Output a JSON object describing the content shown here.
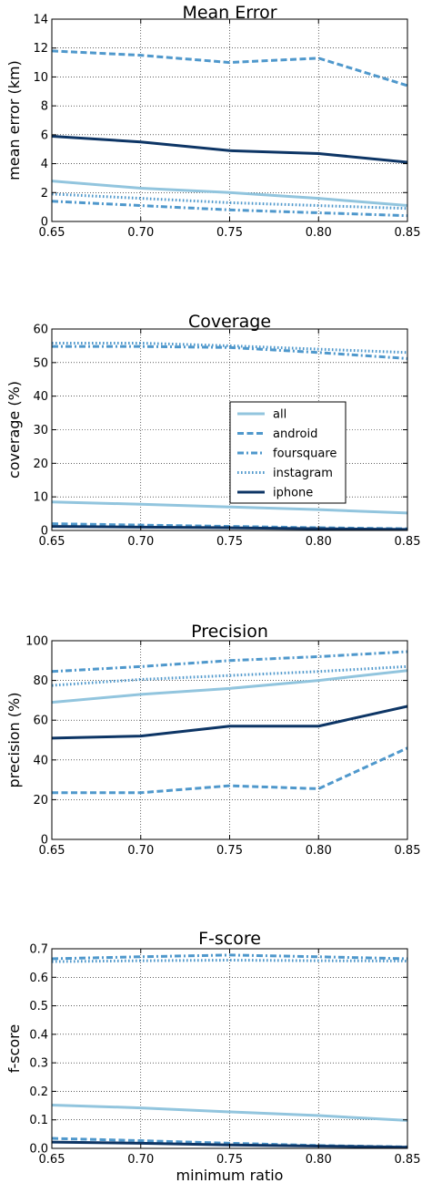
{
  "chart_data": [
    {
      "type": "line",
      "title": "Mean Error",
      "xlabel": "",
      "ylabel": "mean error (km)",
      "x": [
        0.65,
        0.7,
        0.75,
        0.8,
        0.85
      ],
      "x_ticks": [
        "0.65",
        "0.70",
        "0.75",
        "0.80",
        "0.85"
      ],
      "xlim": [
        0.65,
        0.85
      ],
      "ylim": [
        0,
        14
      ],
      "y_ticks": [
        "0",
        "2",
        "4",
        "6",
        "8",
        "10",
        "12",
        "14"
      ],
      "y_tick_values": [
        0,
        2,
        4,
        6,
        8,
        10,
        12,
        14
      ],
      "grid": true,
      "legend": null,
      "series": [
        {
          "name": "all",
          "values": [
            2.8,
            2.3,
            2.0,
            1.6,
            1.1
          ]
        },
        {
          "name": "android",
          "values": [
            11.8,
            11.5,
            11.0,
            11.3,
            9.4
          ]
        },
        {
          "name": "foursquare",
          "values": [
            1.4,
            1.1,
            0.8,
            0.6,
            0.4
          ]
        },
        {
          "name": "instagram",
          "values": [
            1.9,
            1.6,
            1.3,
            1.1,
            0.9
          ]
        },
        {
          "name": "iphone",
          "values": [
            5.9,
            5.5,
            4.9,
            4.7,
            4.1
          ]
        }
      ]
    },
    {
      "type": "line",
      "title": "Coverage",
      "xlabel": "",
      "ylabel": "coverage (%)",
      "x": [
        0.65,
        0.7,
        0.75,
        0.8,
        0.85
      ],
      "x_ticks": [
        "0.65",
        "0.70",
        "0.75",
        "0.80",
        "0.85"
      ],
      "xlim": [
        0.65,
        0.85
      ],
      "ylim": [
        0,
        60
      ],
      "y_ticks": [
        "0",
        "10",
        "20",
        "30",
        "40",
        "50",
        "60"
      ],
      "y_tick_values": [
        0,
        10,
        20,
        30,
        40,
        50,
        60
      ],
      "grid": true,
      "legend": "center-right",
      "series": [
        {
          "name": "all",
          "values": [
            8.5,
            7.8,
            7.0,
            6.2,
            5.2
          ]
        },
        {
          "name": "android",
          "values": [
            2.0,
            1.6,
            1.2,
            0.8,
            0.5
          ]
        },
        {
          "name": "foursquare",
          "values": [
            54.8,
            54.8,
            54.5,
            53.0,
            51.2
          ]
        },
        {
          "name": "instagram",
          "values": [
            55.8,
            55.8,
            55.0,
            54.0,
            53.0
          ]
        },
        {
          "name": "iphone",
          "values": [
            1.2,
            1.0,
            0.8,
            0.5,
            0.3
          ]
        }
      ]
    },
    {
      "type": "line",
      "title": "Precision",
      "xlabel": "",
      "ylabel": "precision (%)",
      "x": [
        0.65,
        0.7,
        0.75,
        0.8,
        0.85
      ],
      "x_ticks": [
        "0.65",
        "0.70",
        "0.75",
        "0.80",
        "0.85"
      ],
      "xlim": [
        0.65,
        0.85
      ],
      "ylim": [
        0,
        100
      ],
      "y_ticks": [
        "0",
        "20",
        "40",
        "60",
        "80",
        "100"
      ],
      "y_tick_values": [
        0,
        20,
        40,
        60,
        80,
        100
      ],
      "grid": true,
      "legend": null,
      "series": [
        {
          "name": "all",
          "values": [
            69,
            73,
            76,
            80,
            85
          ]
        },
        {
          "name": "android",
          "values": [
            23.5,
            23.5,
            27,
            25.5,
            46
          ]
        },
        {
          "name": "foursquare",
          "values": [
            84.5,
            87,
            90,
            92,
            94.5
          ]
        },
        {
          "name": "instagram",
          "values": [
            77.5,
            80.5,
            82.5,
            84.5,
            87
          ]
        },
        {
          "name": "iphone",
          "values": [
            51,
            52,
            57,
            57,
            67
          ]
        }
      ]
    },
    {
      "type": "line",
      "title": "F-score",
      "xlabel": "minimum ratio",
      "ylabel": "f-score",
      "x": [
        0.65,
        0.7,
        0.75,
        0.8,
        0.85
      ],
      "x_ticks": [
        "0.65",
        "0.70",
        "0.75",
        "0.80",
        "0.85"
      ],
      "xlim": [
        0.65,
        0.85
      ],
      "ylim": [
        0,
        0.7
      ],
      "y_ticks": [
        "0.0",
        "0.1",
        "0.2",
        "0.3",
        "0.4",
        "0.5",
        "0.6",
        "0.7"
      ],
      "y_tick_values": [
        0,
        0.1,
        0.2,
        0.3,
        0.4,
        0.5,
        0.6,
        0.7
      ],
      "grid": true,
      "legend": null,
      "series": [
        {
          "name": "all",
          "values": [
            0.152,
            0.142,
            0.128,
            0.115,
            0.098
          ]
        },
        {
          "name": "android",
          "values": [
            0.035,
            0.027,
            0.018,
            0.01,
            0.005
          ]
        },
        {
          "name": "foursquare",
          "values": [
            0.665,
            0.672,
            0.678,
            0.672,
            0.665
          ]
        },
        {
          "name": "instagram",
          "values": [
            0.655,
            0.658,
            0.66,
            0.658,
            0.657
          ]
        },
        {
          "name": "iphone",
          "values": [
            0.022,
            0.018,
            0.012,
            0.008,
            0.004
          ]
        }
      ]
    }
  ],
  "series_styles": [
    {
      "name": "all",
      "color": "#92c5de",
      "dash": "solid"
    },
    {
      "name": "android",
      "color": "#4f98cc",
      "dash": "dashed"
    },
    {
      "name": "foursquare",
      "color": "#4f98cc",
      "dash": "dashdot"
    },
    {
      "name": "instagram",
      "color": "#4f98cc",
      "dash": "dotted"
    },
    {
      "name": "iphone",
      "color": "#0d3565",
      "dash": "solid"
    }
  ]
}
